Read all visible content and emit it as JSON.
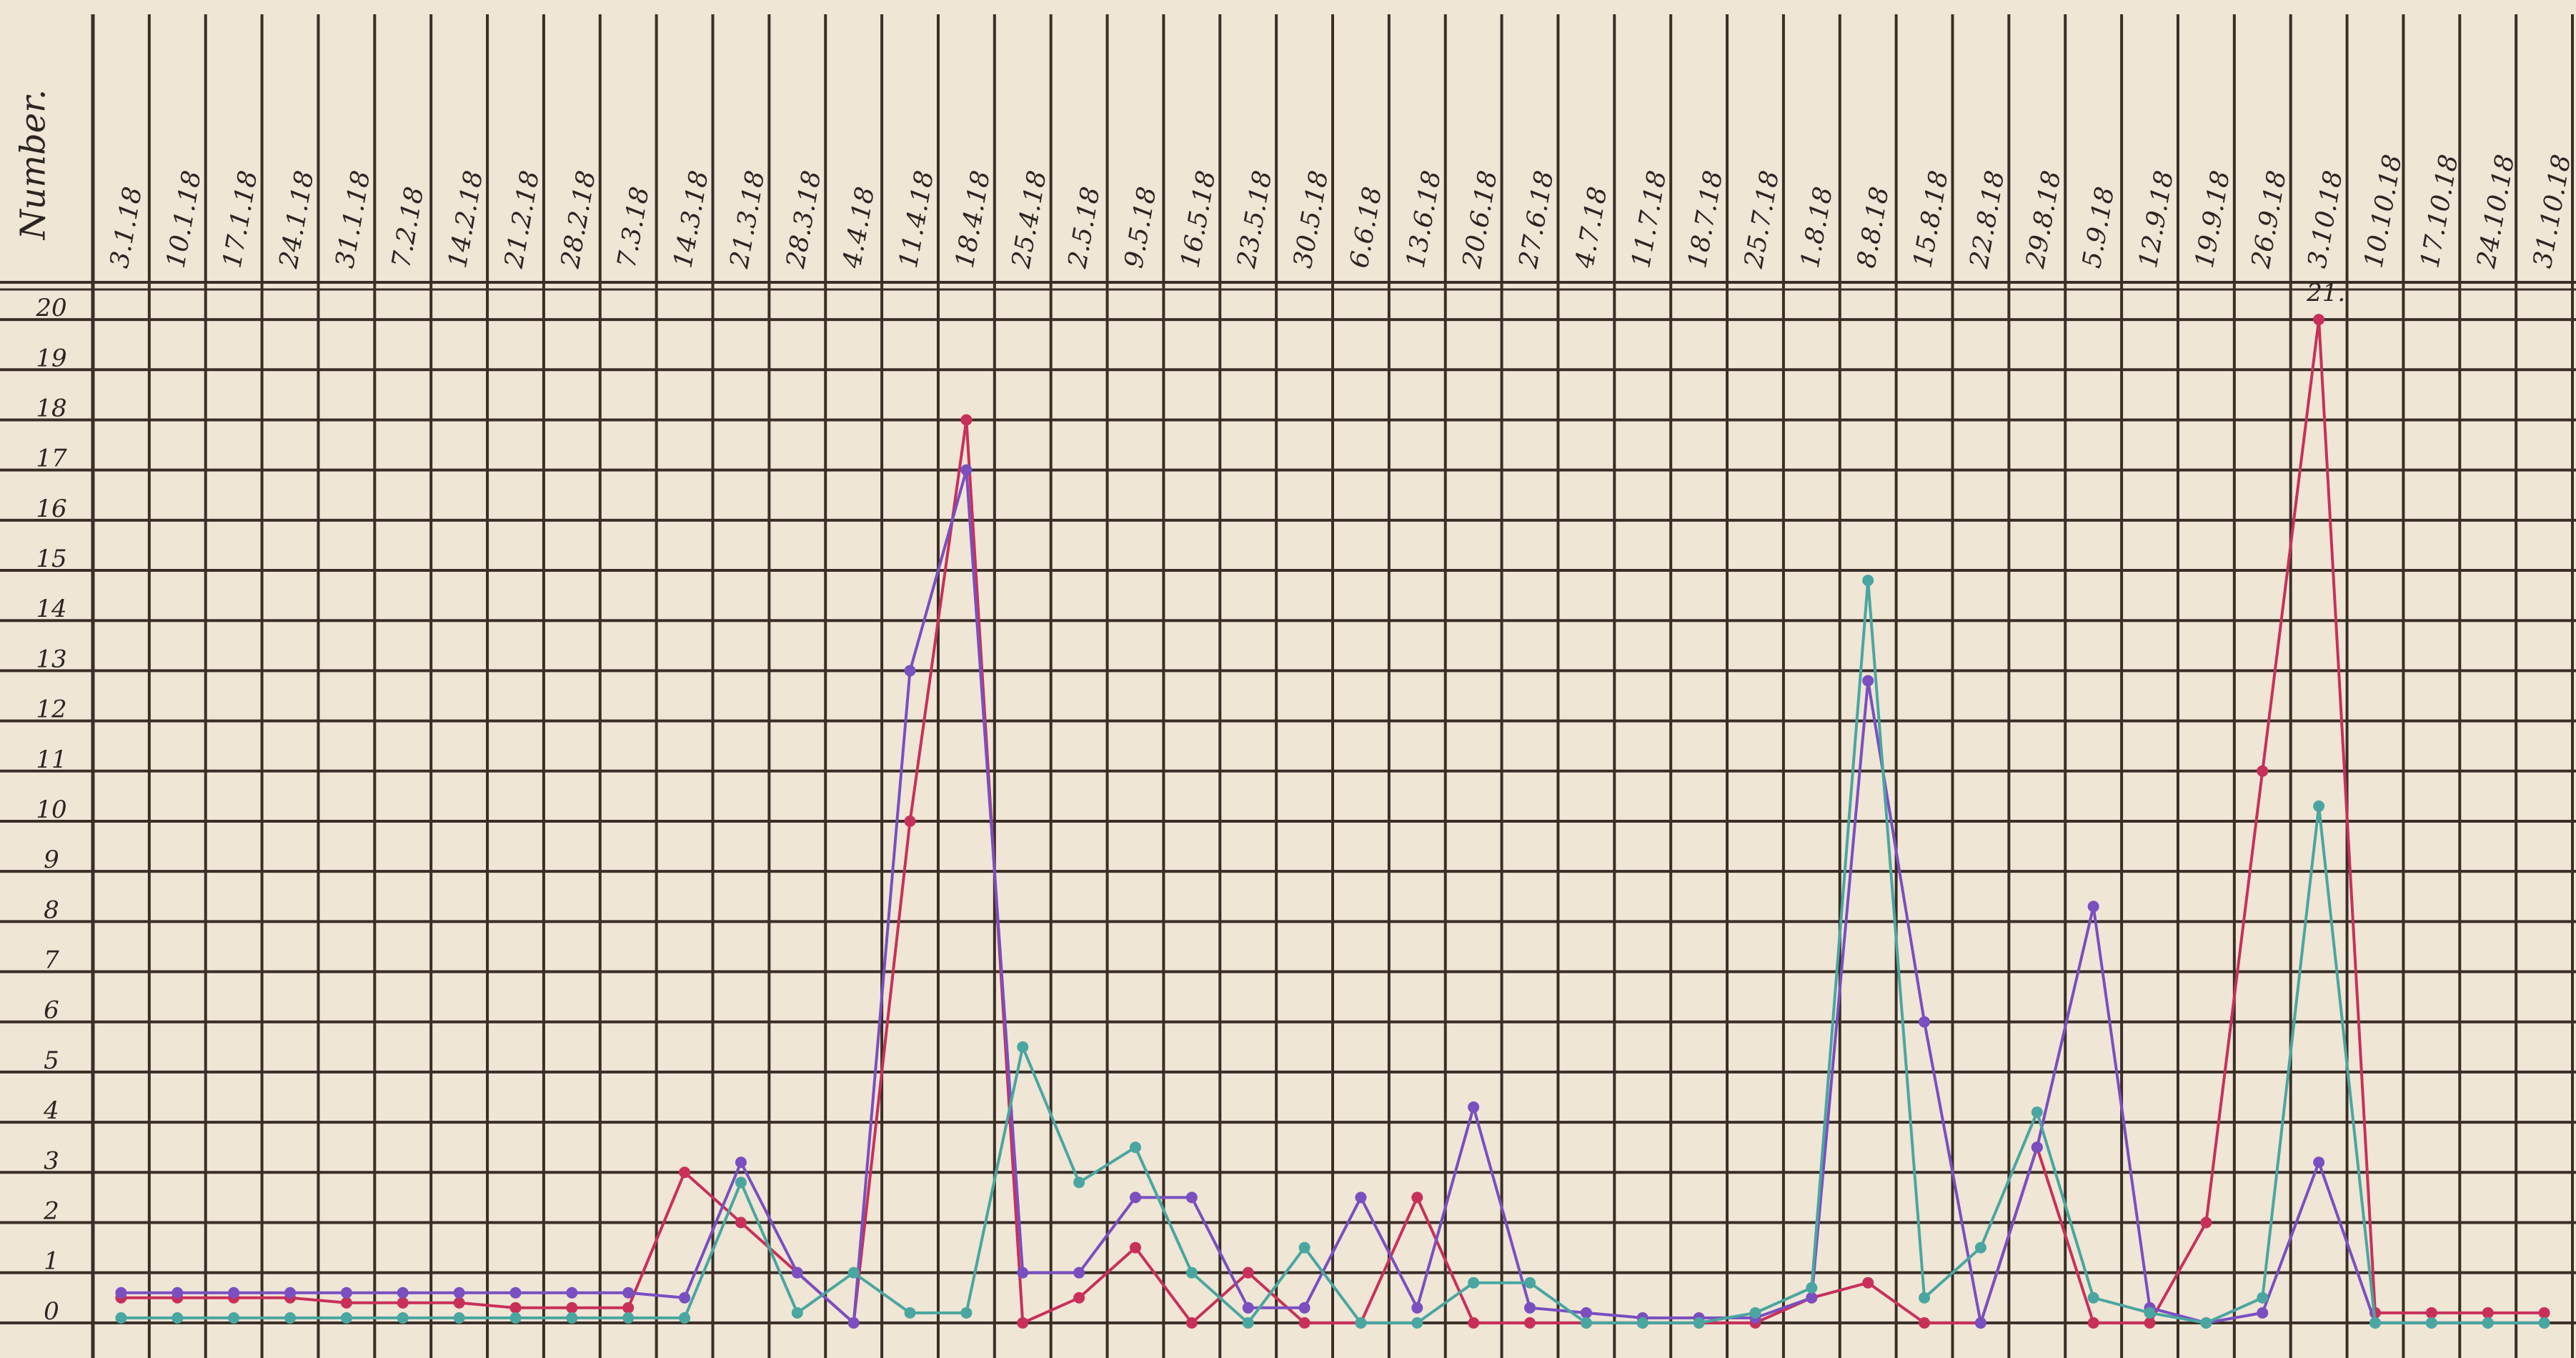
{
  "chart_data": {
    "type": "line",
    "title": "Number.",
    "annotation": "21.",
    "categories": [
      "3.1.18",
      "10.1.18",
      "17.1.18",
      "24.1.18",
      "31.1.18",
      "7.2.18",
      "14.2.18",
      "21.2.18",
      "28.2.18",
      "7.3.18",
      "14.3.18",
      "21.3.18",
      "28.3.18",
      "4.4.18",
      "11.4.18",
      "18.4.18",
      "25.4.18",
      "2.5.18",
      "9.5.18",
      "16.5.18",
      "23.5.18",
      "30.5.18",
      "6.6.18",
      "13.6.18",
      "20.6.18",
      "27.6.18",
      "4.7.18",
      "11.7.18",
      "18.7.18",
      "25.7.18",
      "1.8.18",
      "8.8.18",
      "15.8.18",
      "22.8.18",
      "29.8.18",
      "5.9.18",
      "12.9.18",
      "19.9.18",
      "26.9.18",
      "3.10.18",
      "10.10.18",
      "17.10.18",
      "24.10.18",
      "31.10.18"
    ],
    "series": [
      {
        "color": "#c8305a",
        "values": [
          0.5,
          0.5,
          0.5,
          0.5,
          0.4,
          0.4,
          0.4,
          0.3,
          0.3,
          0.3,
          3,
          2,
          1,
          0,
          10,
          18,
          0,
          0.5,
          1.5,
          0,
          1,
          0,
          0,
          2.5,
          0,
          0,
          0,
          0,
          0,
          0,
          0.5,
          0.8,
          0,
          0,
          3.5,
          0,
          0,
          2,
          11,
          20,
          0.2,
          0.2,
          0.2,
          0.2
        ]
      },
      {
        "color": "#7a4fc0",
        "values": [
          0.6,
          0.6,
          0.6,
          0.6,
          0.6,
          0.6,
          0.6,
          0.6,
          0.6,
          0.6,
          0.5,
          3.2,
          1,
          0,
          13,
          17,
          1,
          1,
          2.5,
          2.5,
          0.3,
          0.3,
          2.5,
          0.3,
          4.3,
          0.3,
          0.2,
          0.1,
          0.1,
          0.1,
          0.5,
          12.8,
          6,
          0,
          3.5,
          8.3,
          0.3,
          0,
          0.2,
          3.2,
          0,
          0,
          0,
          0
        ]
      },
      {
        "color": "#4aa6a0",
        "values": [
          0.1,
          0.1,
          0.1,
          0.1,
          0.1,
          0.1,
          0.1,
          0.1,
          0.1,
          0.1,
          0.1,
          2.8,
          0.2,
          1,
          0.2,
          0.2,
          5.5,
          2.8,
          3.5,
          1,
          0,
          1.5,
          0,
          0,
          0.8,
          0.8,
          0,
          0,
          0,
          0.2,
          0.7,
          14.8,
          0.5,
          1.5,
          4.2,
          0.5,
          0.2,
          0,
          0.5,
          10.3,
          0,
          0,
          0,
          0
        ]
      }
    ],
    "ylim": [
      -0.7,
      20.6
    ],
    "yticks": [
      0,
      1,
      2,
      3,
      4,
      5,
      6,
      7,
      8,
      9,
      10,
      11,
      12,
      13,
      14,
      15,
      16,
      17,
      18,
      19,
      20
    ],
    "grid": true
  }
}
